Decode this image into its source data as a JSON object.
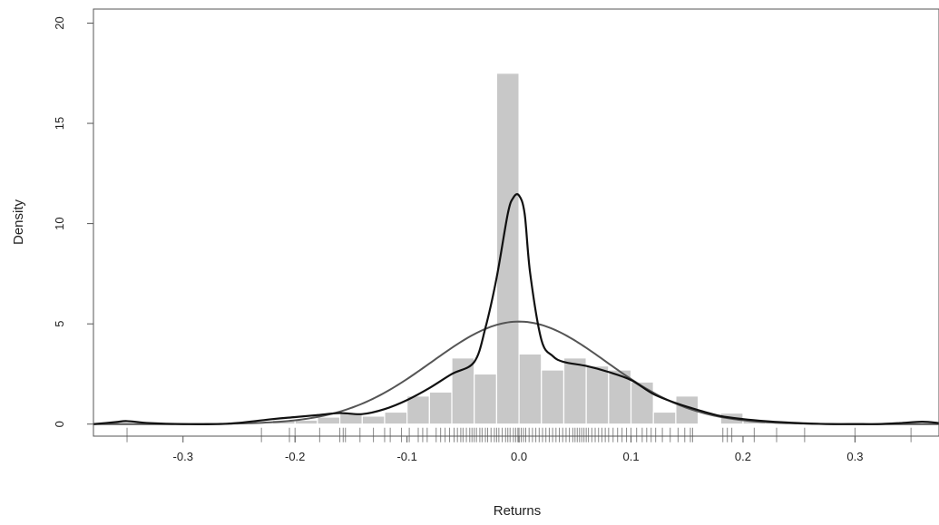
{
  "chart_data": {
    "type": "histogram",
    "title": "",
    "xlabel": "Returns",
    "ylabel": "Density",
    "xlim": [
      -0.38,
      0.375
    ],
    "ylim": [
      -0.6,
      20.7
    ],
    "grid": false,
    "x_ticks": [
      -0.3,
      -0.2,
      -0.1,
      0.0,
      0.1,
      0.2,
      0.3
    ],
    "x_tick_labels": [
      "-0.3",
      "-0.2",
      "-0.1",
      "0.0",
      "0.1",
      "0.2",
      "0.3"
    ],
    "y_ticks": [
      0,
      5,
      10,
      15,
      20
    ],
    "y_tick_labels": [
      "0",
      "5",
      "10",
      "15",
      "20"
    ],
    "histogram": {
      "bin_width": 0.02,
      "bins": [
        {
          "x0": -0.22,
          "x1": -0.2,
          "density": 0.2
        },
        {
          "x0": -0.2,
          "x1": -0.18,
          "density": 0.2
        },
        {
          "x0": -0.18,
          "x1": -0.16,
          "density": 0.35
        },
        {
          "x0": -0.16,
          "x1": -0.14,
          "density": 0.55
        },
        {
          "x0": -0.14,
          "x1": -0.12,
          "density": 0.4
        },
        {
          "x0": -0.12,
          "x1": -0.1,
          "density": 0.6
        },
        {
          "x0": -0.1,
          "x1": -0.08,
          "density": 1.4
        },
        {
          "x0": -0.08,
          "x1": -0.06,
          "density": 1.6
        },
        {
          "x0": -0.06,
          "x1": -0.04,
          "density": 3.3
        },
        {
          "x0": -0.04,
          "x1": -0.02,
          "density": 2.5
        },
        {
          "x0": -0.02,
          "x1": 0.0,
          "density": 17.5
        },
        {
          "x0": 0.0,
          "x1": 0.02,
          "density": 3.5
        },
        {
          "x0": 0.02,
          "x1": 0.04,
          "density": 2.7
        },
        {
          "x0": 0.04,
          "x1": 0.06,
          "density": 3.3
        },
        {
          "x0": 0.06,
          "x1": 0.08,
          "density": 2.9
        },
        {
          "x0": 0.08,
          "x1": 0.1,
          "density": 2.7
        },
        {
          "x0": 0.1,
          "x1": 0.12,
          "density": 2.1
        },
        {
          "x0": 0.12,
          "x1": 0.14,
          "density": 0.6
        },
        {
          "x0": 0.14,
          "x1": 0.16,
          "density": 1.4
        },
        {
          "x0": 0.18,
          "x1": 0.2,
          "density": 0.55
        },
        {
          "x0": 0.2,
          "x1": 0.22,
          "density": 0.2
        }
      ]
    },
    "series": [
      {
        "kind": "kernel-density-line",
        "color": "#111111",
        "x": [
          -0.38,
          -0.36,
          -0.35,
          -0.33,
          -0.3,
          -0.26,
          -0.22,
          -0.2,
          -0.18,
          -0.16,
          -0.14,
          -0.12,
          -0.1,
          -0.08,
          -0.06,
          -0.04,
          -0.03,
          -0.02,
          -0.01,
          -0.005,
          0.0,
          0.005,
          0.01,
          0.02,
          0.03,
          0.04,
          0.06,
          0.08,
          0.1,
          0.12,
          0.14,
          0.16,
          0.18,
          0.2,
          0.22,
          0.25,
          0.28,
          0.3,
          0.32,
          0.34,
          0.36,
          0.375
        ],
        "y": [
          0.0,
          0.1,
          0.15,
          0.05,
          0.0,
          0.02,
          0.25,
          0.35,
          0.45,
          0.55,
          0.5,
          0.75,
          1.2,
          1.8,
          2.5,
          3.1,
          4.8,
          7.3,
          10.5,
          11.3,
          11.4,
          10.5,
          7.5,
          4.2,
          3.4,
          3.1,
          2.9,
          2.6,
          2.2,
          1.5,
          1.05,
          0.7,
          0.4,
          0.25,
          0.15,
          0.05,
          0.0,
          0.0,
          0.0,
          0.05,
          0.12,
          0.05
        ]
      },
      {
        "kind": "normal-density-line",
        "color": "#555555",
        "mean": 0.0,
        "sd": 0.078
      }
    ],
    "rug": {
      "color": "#888888",
      "x": [
        -0.35,
        -0.23,
        -0.205,
        -0.2,
        -0.178,
        -0.16,
        -0.157,
        -0.155,
        -0.142,
        -0.13,
        -0.12,
        -0.115,
        -0.105,
        -0.098,
        -0.09,
        -0.086,
        -0.082,
        -0.074,
        -0.07,
        -0.066,
        -0.062,
        -0.058,
        -0.055,
        -0.052,
        -0.05,
        -0.047,
        -0.044,
        -0.042,
        -0.04,
        -0.038,
        -0.035,
        -0.033,
        -0.03,
        -0.028,
        -0.025,
        -0.022,
        -0.02,
        -0.018,
        -0.015,
        -0.012,
        -0.01,
        -0.008,
        -0.005,
        -0.003,
        -0.001,
        0.0,
        0.002,
        0.004,
        0.006,
        0.009,
        0.012,
        0.015,
        0.018,
        0.021,
        0.024,
        0.027,
        0.03,
        0.033,
        0.036,
        0.039,
        0.042,
        0.045,
        0.048,
        0.05,
        0.052,
        0.054,
        0.056,
        0.058,
        0.06,
        0.062,
        0.065,
        0.068,
        0.071,
        0.074,
        0.077,
        0.08,
        0.084,
        0.088,
        0.092,
        0.096,
        0.1,
        0.105,
        0.11,
        0.114,
        0.118,
        0.122,
        0.128,
        0.135,
        0.142,
        0.148,
        0.153,
        0.155,
        0.182,
        0.186,
        0.19,
        0.21,
        0.23,
        0.255,
        0.3,
        0.35
      ]
    }
  }
}
